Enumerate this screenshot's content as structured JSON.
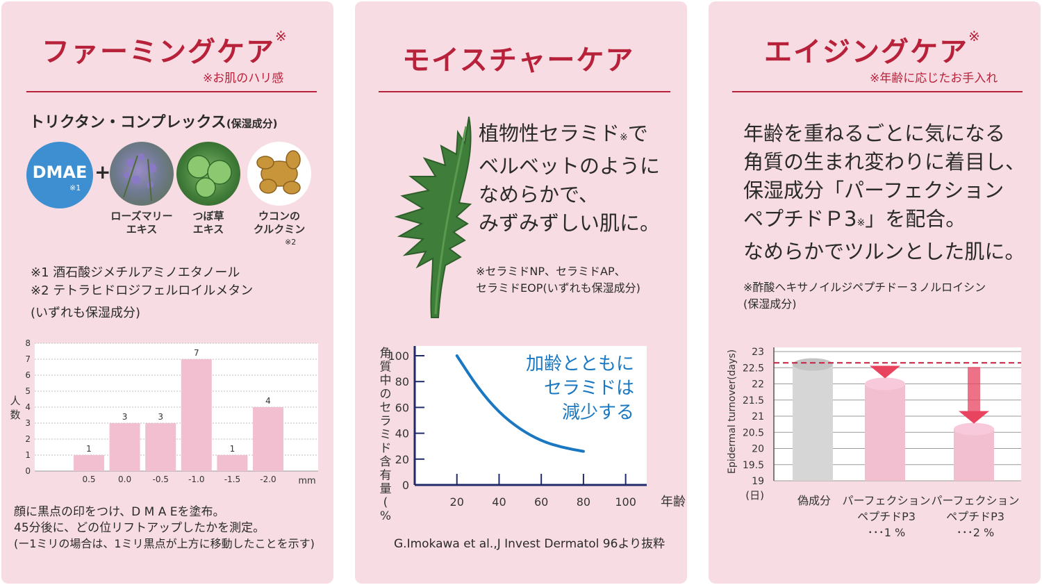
{
  "panel1": {
    "title": "ファーミングケア",
    "title_mark": "※",
    "subnote": "※お肌のハリ感",
    "complex_name": "トリクタン・コンプレックス",
    "complex_note": "(保湿成分)",
    "dmae_label": "DMAE",
    "dmae_mark": "※1",
    "plus": "+",
    "ingredient1": [
      "ローズマリー",
      "エキス"
    ],
    "ingredient2": [
      "つぼ草",
      "エキス"
    ],
    "ingredient3": [
      "ウコンの",
      "クルクミン"
    ],
    "ingredient3_mark": "※2",
    "footnote1": "※1  酒石酸ジメチルアミノエタノール",
    "footnote2": "※2  テトラヒドロジフェルロイルメタン",
    "footnote3": "(いずれも保湿成分)",
    "caption1": "顔に黒点の印をつけ、D M A Eを塗布。",
    "caption2": "45分後に、どの位リフトアップしたかを測定。",
    "caption3": "(ー1ミリの場合は、1ミリ黒点が上方に移動したことを示す)"
  },
  "panel2": {
    "title": "モイスチャーケア",
    "body_line1": "植物性セラミド",
    "body_mark": "※",
    "body_line1_end": "で",
    "body_line2": "ベルベットのように",
    "body_line3": "なめらかで、",
    "body_line4": "みずみずしい肌に。",
    "note1": "※セラミドNP、セラミドAP、",
    "note2": "セラミドEOP(いずれも保湿成分)",
    "source": "G.Imokawa et al.,J Invest Dermatol 96より抜粋"
  },
  "panel3": {
    "title": "エイジングケア",
    "title_mark": "※",
    "subnote": "※年齢に応じたお手入れ",
    "body_line1": "年齢を重ねるごとに気になる",
    "body_line2": "角質の生まれ変わりに着目し、",
    "body_line3": "保湿成分「パーフェクション",
    "body_line4a": "ペプチドＰ3",
    "body_mark": "※",
    "body_line4b": "」を配合。",
    "body_line5": "なめらかでツルンとした肌に。",
    "note1": "※酢酸ヘキサノイルジペプチドー３ノルロイシン",
    "note2": "(保湿成分)"
  },
  "colors": {
    "panel_bg": "#f7dde3",
    "accent_red": "#b8213a",
    "bar_pink": "#f2bfd1",
    "curve_blue": "#1a78c2",
    "placebo_gray": "#d6d6d6",
    "arrow_pink": "#e8435f"
  },
  "chart_data": [
    {
      "type": "bar",
      "ylabel": "人数",
      "xunit": "mm",
      "ylim": [
        0,
        8
      ],
      "yticks": [
        "0",
        "1",
        "2",
        "3",
        "4",
        "5",
        "6",
        "7",
        "8"
      ],
      "categories": [
        "0.5",
        "0.0",
        "-0.5",
        "-1.0",
        "-1.5",
        "-2.0"
      ],
      "values": [
        1,
        3,
        3,
        7,
        1,
        4
      ],
      "grid": true
    },
    {
      "type": "line",
      "ylabel": "角質中のセラミド含有量(%)",
      "xlabel": "年齢",
      "xlim": [
        0,
        110
      ],
      "ylim": [
        0,
        100
      ],
      "xticks": [
        "20",
        "40",
        "60",
        "80",
        "100"
      ],
      "yticks": [
        "0",
        "20",
        "40",
        "60",
        "80",
        "100"
      ],
      "annotation": [
        "加齢とともに",
        "セラミドは",
        "減少する"
      ],
      "series": [
        {
          "x": [
            20,
            30,
            40,
            50,
            60,
            70,
            80
          ],
          "y": [
            100,
            75,
            56,
            43,
            34,
            29,
            26
          ]
        }
      ]
    },
    {
      "type": "bar",
      "ylabel": "Epidermal turnover(days)",
      "yunit": "(日)",
      "ylim": [
        19,
        23
      ],
      "yticks": [
        "19",
        "19.5",
        "20",
        "20.5",
        "21",
        "21.5",
        "22",
        "22.5",
        "23"
      ],
      "categories": [
        [
          "偽成分"
        ],
        [
          "パーフェクション",
          "ペプチドP3",
          "･･･1 %"
        ],
        [
          "パーフェクション",
          "ペプチドP3",
          "･･･2 %"
        ]
      ],
      "values": [
        22.6,
        22.0,
        20.6
      ],
      "reference_line": 22.65,
      "grid": true
    }
  ]
}
